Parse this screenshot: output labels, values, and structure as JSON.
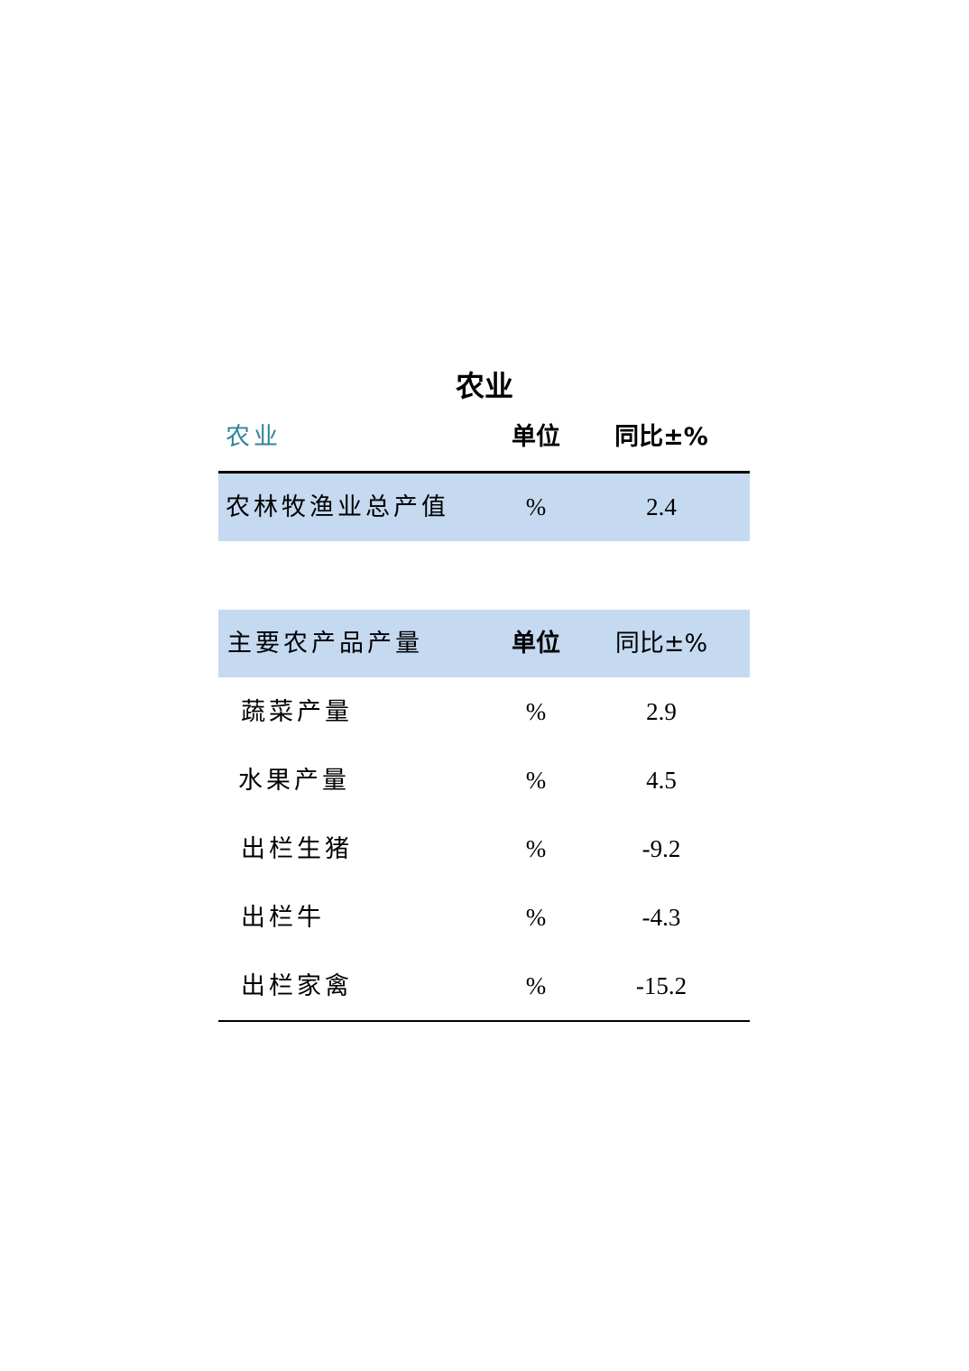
{
  "title": "农业",
  "section1": {
    "header": {
      "name": "农业",
      "unit": "单位",
      "change": "同比±%"
    },
    "rows": [
      {
        "name": "农林牧渔业总产值",
        "unit": "%",
        "value": "2.4"
      }
    ]
  },
  "section2": {
    "header": {
      "name": "主要农产品产量",
      "unit": "单位",
      "change": "同比±%"
    },
    "rows": [
      {
        "name": "蔬菜产量",
        "unit": "%",
        "value": "2.9"
      },
      {
        "name": "水果产量",
        "unit": "%",
        "value": "4.5"
      },
      {
        "name": "出栏生猪",
        "unit": "%",
        "value": "-9.2"
      },
      {
        "name": "出栏牛",
        "unit": "%",
        "value": "-4.3"
      },
      {
        "name": "出栏家禽",
        "unit": "%",
        "value": "-15.2"
      }
    ]
  },
  "colors": {
    "header_fill": "#c5d9f1",
    "accent_text": "#31849b"
  }
}
